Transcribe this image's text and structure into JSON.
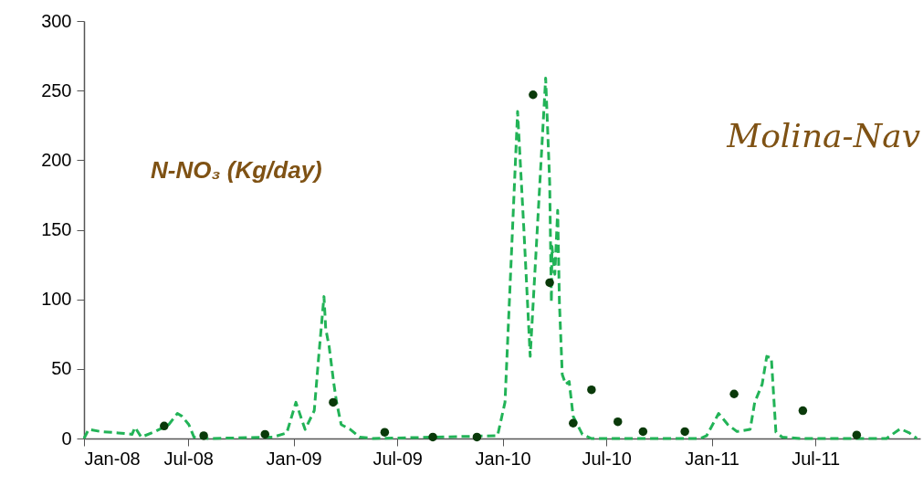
{
  "chart_data": {
    "type": "line",
    "annotations": [
      "N-NO₃ (Kg/day)",
      "Molina-Nav"
    ],
    "xlim": [
      "2008-01-01",
      "2011-12-31"
    ],
    "xticks": [
      {
        "value": "2008-01-01",
        "label": "Jan-08"
      },
      {
        "value": "2008-07-01",
        "label": "Jul-08"
      },
      {
        "value": "2009-01-01",
        "label": "Jan-09"
      },
      {
        "value": "2009-07-01",
        "label": "Jul-09"
      },
      {
        "value": "2010-01-01",
        "label": "Jan-10"
      },
      {
        "value": "2010-07-01",
        "label": "Jul-10"
      },
      {
        "value": "2011-01-01",
        "label": "Jan-11"
      },
      {
        "value": "2011-07-01",
        "label": "Jul-11"
      }
    ],
    "ylim": [
      0,
      300
    ],
    "yticks": [
      0,
      50,
      100,
      150,
      200,
      250,
      300
    ],
    "series": [
      {
        "type": "line",
        "color": "#22b357",
        "line_style": "dashed",
        "x": [
          "2008-01-01",
          "2008-01-09",
          "2008-01-30",
          "2008-03-01",
          "2008-03-25",
          "2008-03-30",
          "2008-04-10",
          "2008-05-04",
          "2008-05-28",
          "2008-06-12",
          "2008-06-20",
          "2008-07-02",
          "2008-07-11",
          "2008-08-07",
          "2008-11-26",
          "2008-12-20",
          "2009-01-05",
          "2009-01-21",
          "2009-02-06",
          "2009-02-14",
          "2009-02-23",
          "2009-02-26",
          "2009-03-04",
          "2009-03-12",
          "2009-03-17",
          "2009-03-25",
          "2009-04-10",
          "2009-04-26",
          "2009-05-20",
          "2009-12-23",
          "2010-01-05",
          "2010-01-16",
          "2010-01-27",
          "2010-02-07",
          "2010-02-18",
          "2010-03-01",
          "2010-03-17",
          "2010-03-24",
          "2010-03-27",
          "2010-03-28",
          "2010-04-02",
          "2010-04-07",
          "2010-04-10",
          "2010-04-15",
          "2010-04-21",
          "2010-04-27",
          "2010-05-04",
          "2010-05-20",
          "2010-06-05",
          "2010-12-12",
          "2010-12-23",
          "2011-01-13",
          "2011-01-29",
          "2011-02-14",
          "2011-03-09",
          "2011-03-17",
          "2011-03-30",
          "2011-04-07",
          "2011-04-15",
          "2011-04-23",
          "2011-05-04",
          "2011-06-05",
          "2011-11-02",
          "2011-11-26",
          "2011-12-12",
          "2011-12-25"
        ],
        "values": [
          0,
          6.5,
          5,
          4,
          3,
          8,
          1,
          5,
          10,
          18,
          16,
          10,
          1,
          0,
          1,
          4,
          26,
          6.5,
          20,
          60,
          102,
          79,
          66,
          40,
          26,
          10,
          6.5,
          1,
          0,
          2,
          26,
          130,
          235,
          150,
          59,
          140,
          259,
          184,
          98,
          138,
          118,
          164,
          98,
          46,
          39,
          41,
          16,
          3,
          0,
          0,
          2,
          18,
          10,
          5,
          6.5,
          26,
          39,
          59,
          58,
          4.5,
          1,
          0,
          0,
          7,
          4,
          0
        ]
      },
      {
        "type": "scatter",
        "color": "#0a3a0a",
        "marker": "circle",
        "x": [
          "2008-05-20",
          "2008-07-28",
          "2008-11-12",
          "2009-03-11",
          "2009-06-09",
          "2009-09-01",
          "2009-11-17",
          "2010-02-23",
          "2010-03-24",
          "2010-05-04",
          "2010-06-05",
          "2010-07-21",
          "2010-09-03",
          "2010-11-15",
          "2011-02-09",
          "2011-06-09",
          "2011-09-11"
        ],
        "values": [
          9,
          2,
          3,
          26,
          4.5,
          1,
          1,
          247,
          112,
          11,
          35,
          12,
          5,
          5,
          32,
          20,
          2.5
        ]
      }
    ]
  }
}
